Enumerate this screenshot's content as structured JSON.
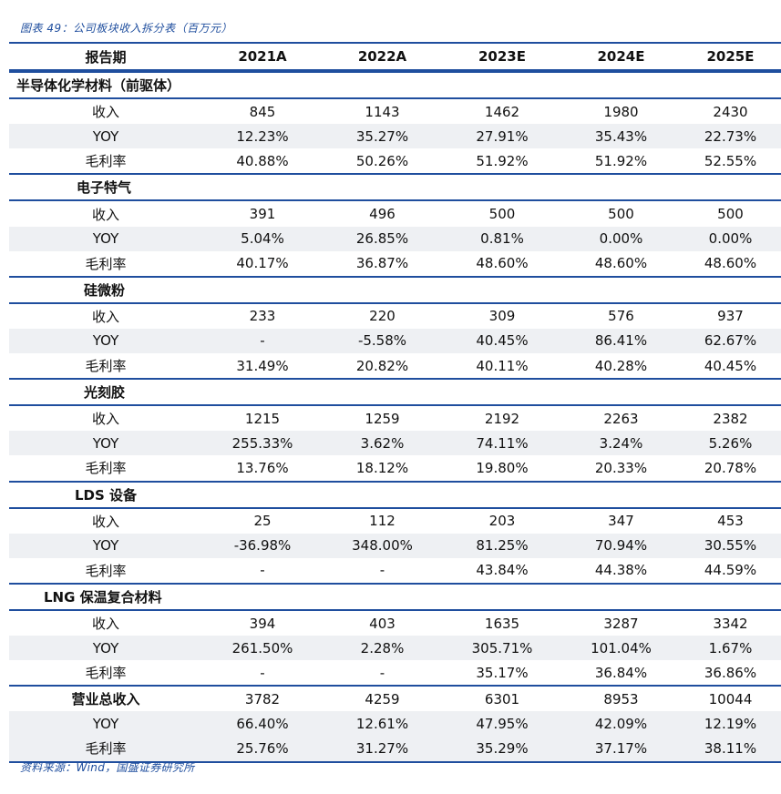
{
  "caption": "图表 49：公司板块收入拆分表（百万元）",
  "source": "资料来源：Wind，国盛证券研究所",
  "header": [
    "报告期",
    "2021A",
    "2022A",
    "2023E",
    "2024E",
    "2025E"
  ],
  "sections": [
    {
      "title": "半导体化学材料（前驱体）",
      "title_indent": 8,
      "rows": [
        {
          "label": "收入",
          "values": [
            "845",
            "1143",
            "1462",
            "1980",
            "2430"
          ]
        },
        {
          "label": "YOY",
          "values": [
            "12.23%",
            "35.27%",
            "27.91%",
            "35.43%",
            "22.73%"
          ]
        },
        {
          "label": "毛利率",
          "values": [
            "40.88%",
            "50.26%",
            "51.92%",
            "51.92%",
            "52.55%"
          ]
        }
      ]
    },
    {
      "title": "电子特气",
      "title_indent": 74,
      "rows": [
        {
          "label": "收入",
          "values": [
            "391",
            "496",
            "500",
            "500",
            "500"
          ]
        },
        {
          "label": "YOY",
          "values": [
            "5.04%",
            "26.85%",
            "0.81%",
            "0.00%",
            "0.00%"
          ]
        },
        {
          "label": "毛利率",
          "values": [
            "40.17%",
            "36.87%",
            "48.60%",
            "48.60%",
            "48.60%"
          ]
        }
      ]
    },
    {
      "title": "硅微粉",
      "title_indent": 82,
      "rows": [
        {
          "label": "收入",
          "values": [
            "233",
            "220",
            "309",
            "576",
            "937"
          ]
        },
        {
          "label": "YOY",
          "values": [
            "-",
            "-5.58%",
            "40.45%",
            "86.41%",
            "62.67%"
          ]
        },
        {
          "label": "毛利率",
          "values": [
            "31.49%",
            "20.82%",
            "40.11%",
            "40.28%",
            "40.45%"
          ]
        }
      ]
    },
    {
      "title": "光刻胶",
      "title_indent": 82,
      "rows": [
        {
          "label": "收入",
          "values": [
            "1215",
            "1259",
            "2192",
            "2263",
            "2382"
          ]
        },
        {
          "label": "YOY",
          "values": [
            "255.33%",
            "3.62%",
            "74.11%",
            "3.24%",
            "5.26%"
          ]
        },
        {
          "label": "毛利率",
          "values": [
            "13.76%",
            "18.12%",
            "19.80%",
            "20.33%",
            "20.78%"
          ]
        }
      ]
    },
    {
      "title": "LDS 设备",
      "title_indent": 72,
      "rows": [
        {
          "label": "收入",
          "values": [
            "25",
            "112",
            "203",
            "347",
            "453"
          ]
        },
        {
          "label": "YOY",
          "values": [
            "-36.98%",
            "348.00%",
            "81.25%",
            "70.94%",
            "30.55%"
          ]
        },
        {
          "label": "毛利率",
          "values": [
            "-",
            "-",
            "43.84%",
            "44.38%",
            "44.59%"
          ]
        }
      ]
    },
    {
      "title": "LNG 保温复合材料",
      "title_indent": 38,
      "rows": [
        {
          "label": "收入",
          "values": [
            "394",
            "403",
            "1635",
            "3287",
            "3342"
          ]
        },
        {
          "label": "YOY",
          "values": [
            "261.50%",
            "2.28%",
            "305.71%",
            "101.04%",
            "1.67%"
          ]
        },
        {
          "label": "毛利率",
          "values": [
            "-",
            "-",
            "35.17%",
            "36.84%",
            "36.86%"
          ]
        }
      ]
    }
  ],
  "total": {
    "rows": [
      {
        "label": "营业总收入",
        "values": [
          "3782",
          "4259",
          "6301",
          "8953",
          "10044"
        ]
      },
      {
        "label": "YOY",
        "values": [
          "66.40%",
          "12.61%",
          "47.95%",
          "42.09%",
          "12.19%"
        ]
      },
      {
        "label": "毛利率",
        "values": [
          "25.76%",
          "31.27%",
          "35.29%",
          "37.17%",
          "38.11%"
        ]
      }
    ]
  }
}
